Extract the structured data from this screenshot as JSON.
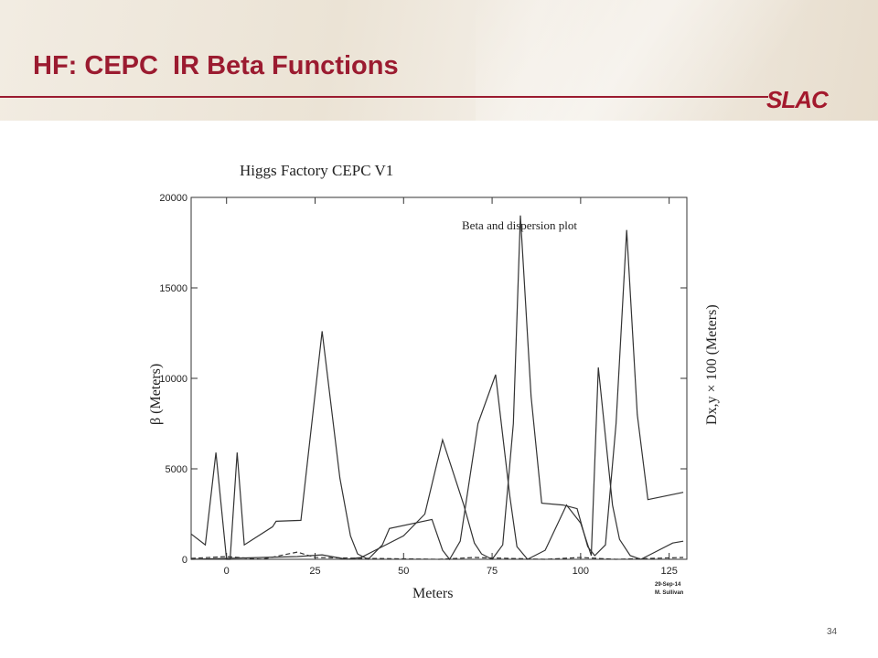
{
  "slide": {
    "title": "HF: CEPC  IR Beta Functions",
    "logo": "SLAC",
    "page_number": "34",
    "colors": {
      "title": "#9b1b30",
      "logo": "#a3192d",
      "banner": "#ede5d8",
      "plot_line": "#333333"
    }
  },
  "chart_data": {
    "type": "line",
    "title": "Higgs Factory CEPC V1",
    "annotation": "Beta and dispersion plot",
    "xlabel": "Meters",
    "ylabel_left": "β (Meters)",
    "ylabel_right": "Dx,y × 100 (Meters)",
    "stamp_date": "29-Sep-14",
    "stamp_author": "M. Sullivan",
    "xlim": [
      -10,
      130
    ],
    "ylim": [
      0,
      20000
    ],
    "x_ticks": [
      0,
      25,
      50,
      75,
      100,
      125
    ],
    "y_ticks": [
      0,
      5000,
      10000,
      15000,
      20000
    ],
    "grid": false,
    "series": [
      {
        "values": [
          [
            -10,
            1400
          ],
          [
            -6,
            800
          ],
          [
            -3,
            5900
          ],
          [
            0,
            0
          ],
          [
            1,
            0
          ],
          [
            3,
            5900
          ],
          [
            5,
            800
          ],
          [
            13,
            1800
          ],
          [
            14,
            2100
          ],
          [
            21,
            2150
          ],
          [
            27,
            12600
          ],
          [
            32,
            4500
          ],
          [
            35,
            1300
          ],
          [
            37,
            300
          ],
          [
            40,
            0
          ],
          [
            44,
            800
          ],
          [
            46,
            1700
          ],
          [
            58,
            2200
          ],
          [
            61,
            500
          ],
          [
            63,
            0
          ],
          [
            66,
            1000
          ],
          [
            71,
            7500
          ],
          [
            76,
            10200
          ],
          [
            80,
            3500
          ],
          [
            82,
            700
          ],
          [
            85,
            0
          ],
          [
            90,
            500
          ],
          [
            96,
            3000
          ],
          [
            100,
            2000
          ],
          [
            103,
            200
          ],
          [
            105,
            10600
          ],
          [
            109,
            3000
          ],
          [
            111,
            1100
          ],
          [
            114,
            200
          ],
          [
            117,
            0
          ],
          [
            121,
            400
          ],
          [
            126,
            900
          ],
          [
            129,
            1000
          ]
        ]
      },
      {
        "values": [
          [
            -10,
            0
          ],
          [
            10,
            100
          ],
          [
            20,
            150
          ],
          [
            27,
            250
          ],
          [
            34,
            0
          ],
          [
            38,
            100
          ],
          [
            44,
            700
          ],
          [
            50,
            1300
          ],
          [
            56,
            2500
          ],
          [
            61,
            6600
          ],
          [
            67,
            3000
          ],
          [
            70,
            900
          ],
          [
            72,
            300
          ],
          [
            75,
            0
          ],
          [
            78,
            800
          ],
          [
            81,
            7500
          ],
          [
            83,
            19000
          ],
          [
            86,
            9000
          ],
          [
            89,
            3100
          ],
          [
            95,
            3000
          ],
          [
            99,
            2800
          ],
          [
            102,
            700
          ],
          [
            104,
            200
          ],
          [
            107,
            800
          ],
          [
            110,
            7500
          ],
          [
            113,
            18200
          ],
          [
            116,
            8000
          ],
          [
            119,
            3300
          ],
          [
            124,
            3500
          ],
          [
            129,
            3700
          ]
        ]
      },
      {
        "values": [
          [
            -10,
            50
          ],
          [
            0,
            150
          ],
          [
            10,
            0
          ],
          [
            20,
            400
          ],
          [
            25,
            100
          ],
          [
            40,
            50
          ],
          [
            60,
            0
          ],
          [
            70,
            100
          ],
          [
            80,
            50
          ],
          [
            90,
            0
          ],
          [
            100,
            100
          ],
          [
            110,
            0
          ],
          [
            120,
            50
          ],
          [
            129,
            100
          ]
        ]
      }
    ]
  }
}
